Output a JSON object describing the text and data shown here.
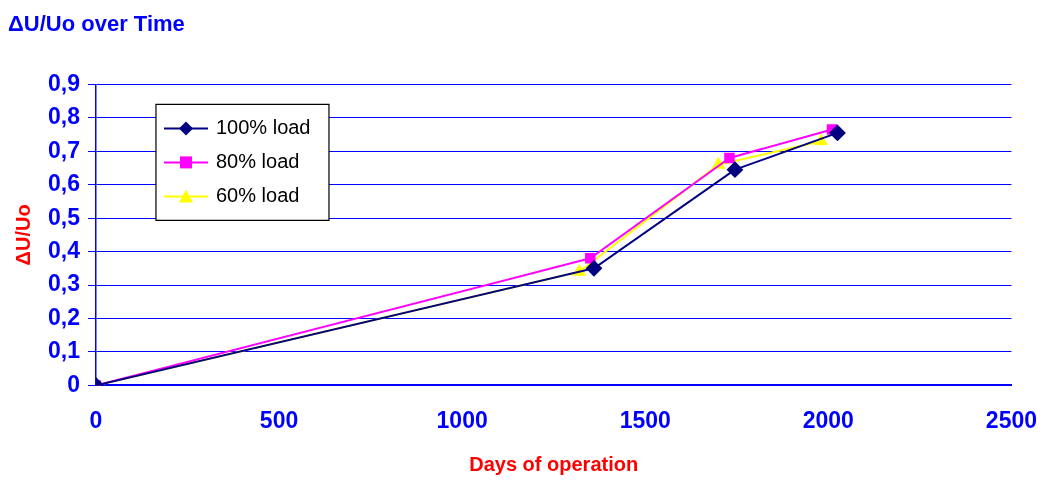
{
  "chart_data": {
    "type": "line",
    "title": "ΔU/Uo over Time",
    "xlabel": "Days of operation",
    "ylabel": "ΔU/Uo",
    "xlim": [
      0,
      2500
    ],
    "xticks": [
      0,
      500,
      1000,
      1500,
      2000,
      2500
    ],
    "ylim": [
      0,
      0.9
    ],
    "yticks": [
      {
        "value": 0,
        "label": "0"
      },
      {
        "value": 0.1,
        "label": "0,1"
      },
      {
        "value": 0.2,
        "label": "0,2"
      },
      {
        "value": 0.3,
        "label": "0,3"
      },
      {
        "value": 0.4,
        "label": "0,4"
      },
      {
        "value": 0.5,
        "label": "0,5"
      },
      {
        "value": 0.6,
        "label": "0,6"
      },
      {
        "value": 0.7,
        "label": "0,7"
      },
      {
        "value": 0.8,
        "label": "0,8"
      },
      {
        "value": 0.9,
        "label": "0,9"
      }
    ],
    "grid": "y",
    "legend": "top left",
    "series": [
      {
        "name": "100% load",
        "color": "#000080",
        "marker": "diamond",
        "x": [
          0,
          1360,
          1745,
          2025
        ],
        "values": [
          0,
          0.35,
          0.645,
          0.755
        ]
      },
      {
        "name": "80% load",
        "color": "#ff00ff",
        "marker": "square",
        "x": [
          0,
          1350,
          1730,
          2010
        ],
        "values": [
          0,
          0.38,
          0.68,
          0.765
        ]
      },
      {
        "name": "60% load",
        "color": "#ffff00",
        "marker": "triangle",
        "x": [
          0,
          1320,
          1700,
          1980
        ],
        "values": [
          0,
          0.34,
          0.66,
          0.73
        ]
      }
    ]
  }
}
